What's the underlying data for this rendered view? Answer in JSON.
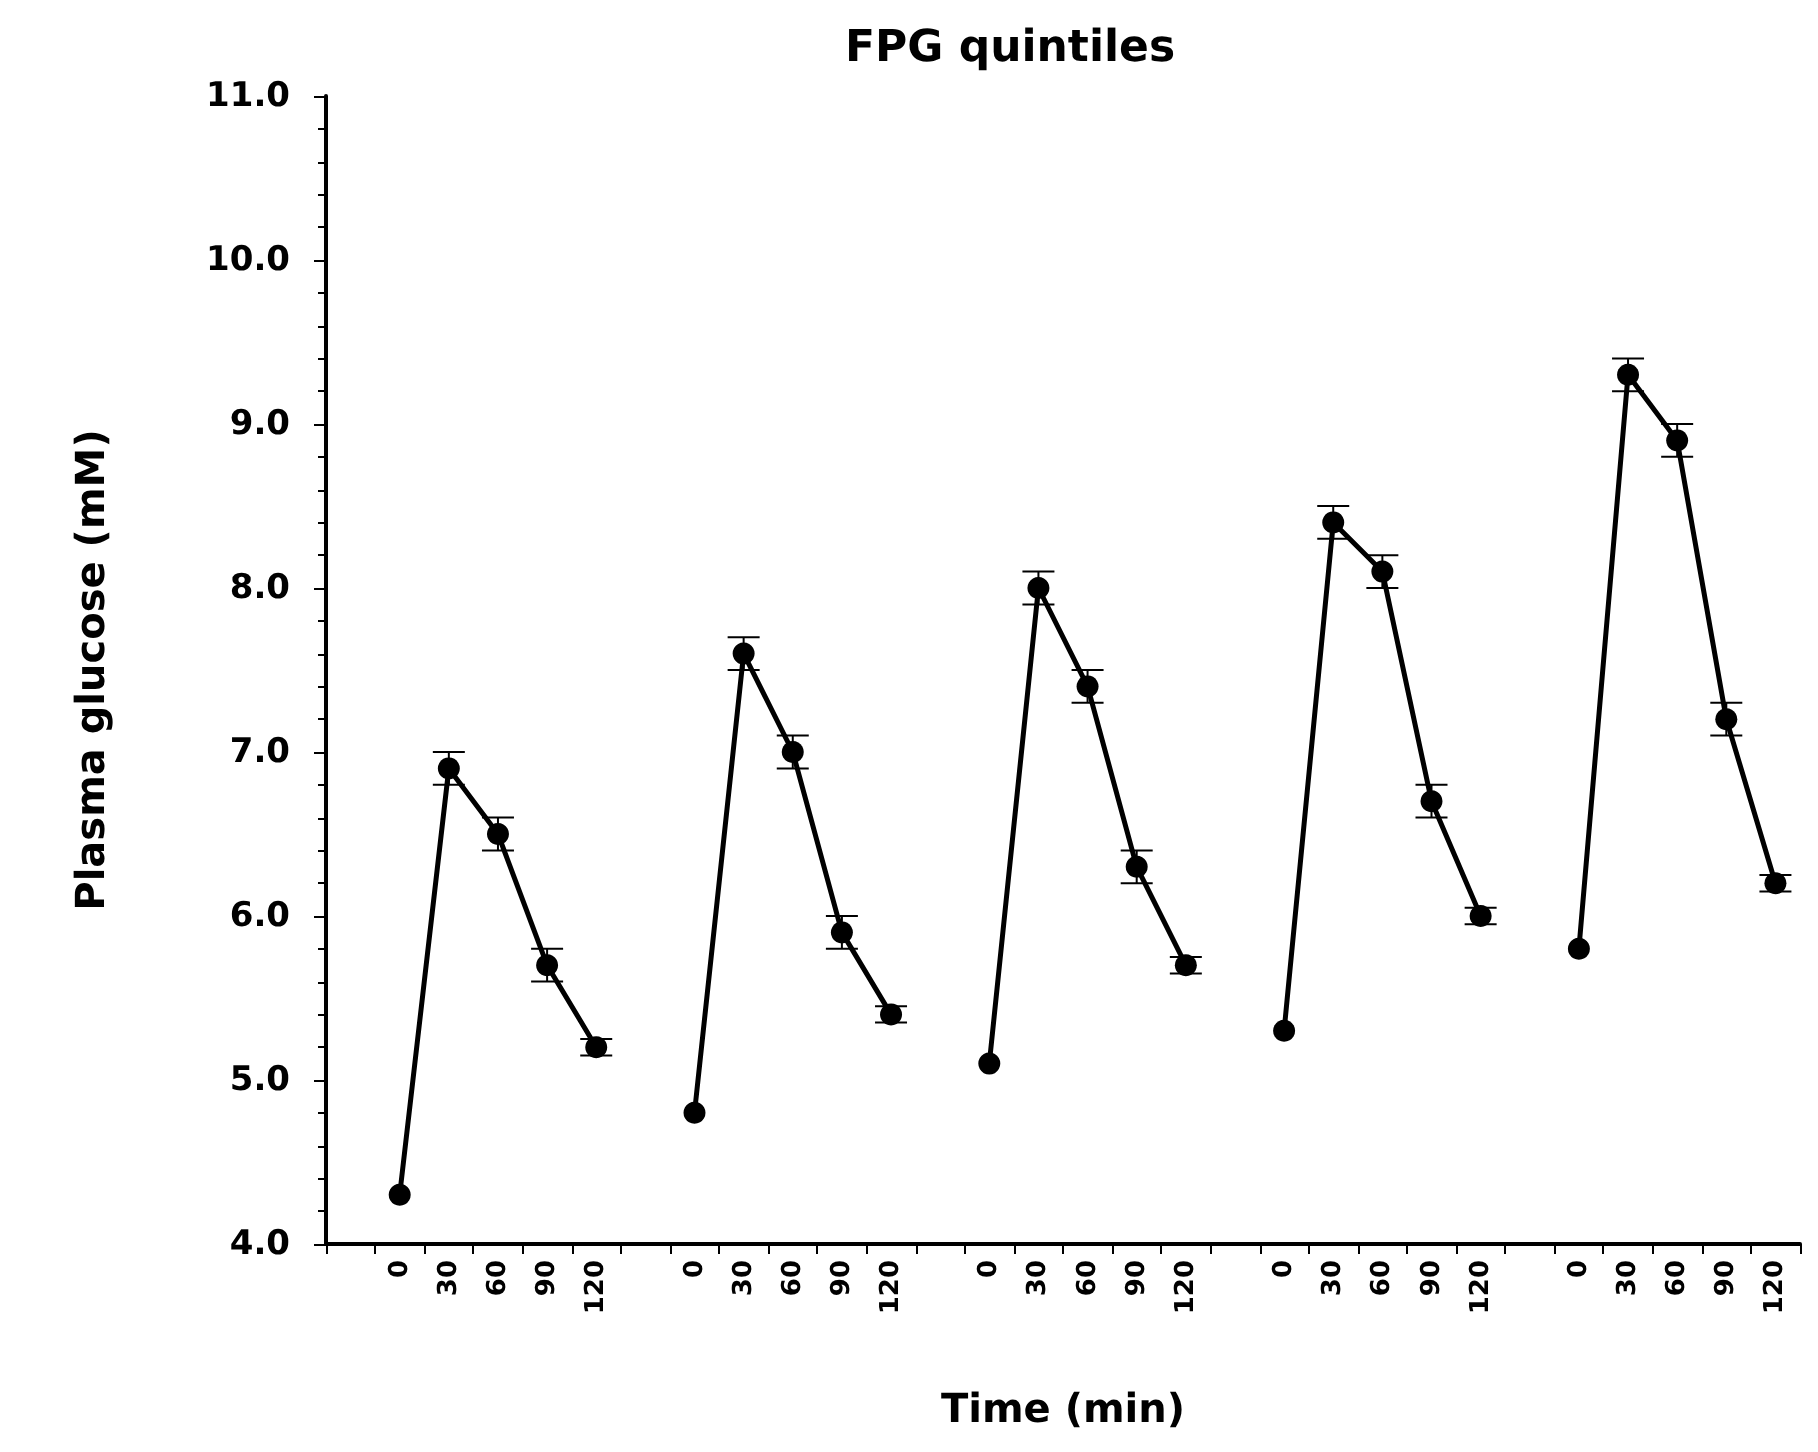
{
  "chart_data": {
    "type": "line",
    "title": "FPG quintiles",
    "xlabel": "Time (min)",
    "ylabel": "Plasma glucose (mM)",
    "categories": [
      null,
      "0",
      "30",
      "60",
      "90",
      "120",
      null,
      "0",
      "30",
      "60",
      "90",
      "120",
      null,
      "0",
      "30",
      "60",
      "90",
      "120",
      null,
      "0",
      "30",
      "60",
      "90",
      "120",
      null,
      "0",
      "30",
      "60",
      "90",
      "120"
    ],
    "series": [
      {
        "color": "#000000",
        "values": [
          null,
          4.3,
          6.9,
          6.5,
          5.7,
          5.2,
          null,
          null,
          null,
          null,
          null,
          null,
          null,
          null,
          null,
          null,
          null,
          null,
          null,
          null,
          null,
          null,
          null,
          null,
          null,
          null,
          null,
          null,
          null,
          null
        ],
        "errors": [
          null,
          null,
          0.1,
          0.1,
          0.1,
          0.05,
          null,
          null,
          null,
          null,
          null,
          null,
          null,
          null,
          null,
          null,
          null,
          null,
          null,
          null,
          null,
          null,
          null,
          null,
          null,
          null,
          null,
          null,
          null,
          null
        ]
      },
      {
        "color": "#000000",
        "values": [
          null,
          null,
          null,
          null,
          null,
          null,
          null,
          4.8,
          7.6,
          7.0,
          5.9,
          5.4,
          null,
          null,
          null,
          null,
          null,
          null,
          null,
          null,
          null,
          null,
          null,
          null,
          null,
          null,
          null,
          null,
          null,
          null
        ],
        "errors": [
          null,
          null,
          null,
          null,
          null,
          null,
          null,
          null,
          0.1,
          0.1,
          0.1,
          0.05,
          null,
          null,
          null,
          null,
          null,
          null,
          null,
          null,
          null,
          null,
          null,
          null,
          null,
          null,
          null,
          null,
          null,
          null
        ]
      },
      {
        "color": "#000000",
        "values": [
          null,
          null,
          null,
          null,
          null,
          null,
          null,
          null,
          null,
          null,
          null,
          null,
          null,
          5.1,
          8.0,
          7.4,
          6.3,
          5.7,
          null,
          null,
          null,
          null,
          null,
          null,
          null,
          null,
          null,
          null,
          null,
          null
        ],
        "errors": [
          null,
          null,
          null,
          null,
          null,
          null,
          null,
          null,
          null,
          null,
          null,
          null,
          null,
          null,
          0.1,
          0.1,
          0.1,
          0.05,
          null,
          null,
          null,
          null,
          null,
          null,
          null,
          null,
          null,
          null,
          null,
          null
        ]
      },
      {
        "color": "#000000",
        "values": [
          null,
          null,
          null,
          null,
          null,
          null,
          null,
          null,
          null,
          null,
          null,
          null,
          null,
          null,
          null,
          null,
          null,
          null,
          null,
          5.3,
          8.4,
          8.1,
          6.7,
          6.0,
          null,
          null,
          null,
          null,
          null,
          null
        ],
        "errors": [
          null,
          null,
          null,
          null,
          null,
          null,
          null,
          null,
          null,
          null,
          null,
          null,
          null,
          null,
          null,
          null,
          null,
          null,
          null,
          null,
          0.1,
          0.1,
          0.1,
          0.05,
          null,
          null,
          null,
          null,
          null,
          null
        ]
      },
      {
        "color": "#000000",
        "values": [
          null,
          null,
          null,
          null,
          null,
          null,
          null,
          null,
          null,
          null,
          null,
          null,
          null,
          null,
          null,
          null,
          null,
          null,
          null,
          null,
          null,
          null,
          null,
          null,
          null,
          5.8,
          9.3,
          8.9,
          7.2,
          6.2
        ],
        "errors": [
          null,
          null,
          null,
          null,
          null,
          null,
          null,
          null,
          null,
          null,
          null,
          null,
          null,
          null,
          null,
          null,
          null,
          null,
          null,
          null,
          null,
          null,
          null,
          null,
          null,
          null,
          0.1,
          0.1,
          0.1,
          0.05
        ]
      }
    ],
    "ylim": [
      4.0,
      11.0
    ],
    "yticks": [
      {
        "value": 4,
        "label": "4.0"
      },
      {
        "value": 5,
        "label": "5.0"
      },
      {
        "value": 6,
        "label": "6.0"
      },
      {
        "value": 7,
        "label": "7.0"
      },
      {
        "value": 8,
        "label": "8.0"
      },
      {
        "value": 9,
        "label": "9.0"
      },
      {
        "value": 10,
        "label": "10.0"
      },
      {
        "value": 11,
        "label": "11.0"
      }
    ],
    "marker": "circle",
    "line_style": "solid"
  }
}
